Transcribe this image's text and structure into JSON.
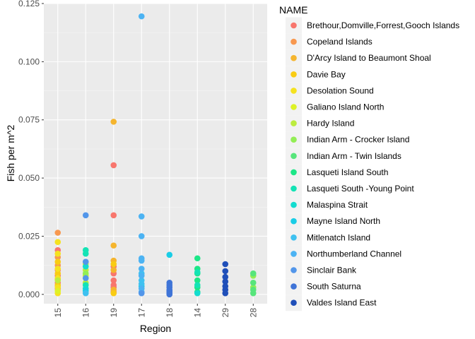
{
  "chart_data": {
    "type": "scatter",
    "title": "",
    "xlabel": "Region",
    "ylabel": "Fish per m^2",
    "ylim": [
      -0.004,
      0.125
    ],
    "categories": [
      "15",
      "16",
      "19",
      "17",
      "18",
      "14",
      "29",
      "28"
    ],
    "y_ticks": [
      "0.000",
      "0.025",
      "0.050",
      "0.075",
      "0.100",
      "0.125"
    ],
    "y_tick_values": [
      0,
      0.025,
      0.05,
      0.075,
      0.1,
      0.125
    ],
    "grid": true,
    "legend": {
      "title": "NAME",
      "placement": "right"
    },
    "series": [
      {
        "name": "Brethour,Domville,Forrest,Gooch Islands",
        "color": "#F8766D",
        "points": [
          {
            "x": "19",
            "y": 0.0555
          },
          {
            "x": "19",
            "y": 0.034
          },
          {
            "x": "19",
            "y": 0.012
          },
          {
            "x": "19",
            "y": 0.009
          },
          {
            "x": "19",
            "y": 0.006
          },
          {
            "x": "19",
            "y": 0.004
          },
          {
            "x": "19",
            "y": 0.003
          },
          {
            "x": "19",
            "y": 0.001
          },
          {
            "x": "15",
            "y": 0.019
          },
          {
            "x": "15",
            "y": 0.0105
          },
          {
            "x": "15",
            "y": 0.008
          },
          {
            "x": "15",
            "y": 0.005
          },
          {
            "x": "15",
            "y": 0.0025
          }
        ]
      },
      {
        "name": "Copeland Islands",
        "color": "#F8984F",
        "points": [
          {
            "x": "15",
            "y": 0.0265
          },
          {
            "x": "15",
            "y": 0.016
          },
          {
            "x": "15",
            "y": 0.0125
          },
          {
            "x": "15",
            "y": 0.0065
          },
          {
            "x": "15",
            "y": 0.0035
          }
        ]
      },
      {
        "name": "D'Arcy Island to Beaumont Shoal",
        "color": "#F5B52E",
        "points": [
          {
            "x": "19",
            "y": 0.0742
          },
          {
            "x": "19",
            "y": 0.021
          },
          {
            "x": "19",
            "y": 0.0145
          },
          {
            "x": "19",
            "y": 0.0105
          },
          {
            "x": "19",
            "y": 0.002
          }
        ]
      },
      {
        "name": "Davie Bay",
        "color": "#F9CC13",
        "points": [
          {
            "x": "15",
            "y": 0.014
          },
          {
            "x": "15",
            "y": 0.009
          },
          {
            "x": "15",
            "y": 0.004
          },
          {
            "x": "19",
            "y": 0.013
          },
          {
            "x": "19",
            "y": 0.0005
          }
        ]
      },
      {
        "name": "Desolation Sound",
        "color": "#F5E21F",
        "points": [
          {
            "x": "15",
            "y": 0.0225
          },
          {
            "x": "15",
            "y": 0.0175
          },
          {
            "x": "15",
            "y": 0.011
          },
          {
            "x": "15",
            "y": 0.007
          },
          {
            "x": "15",
            "y": 0.003
          },
          {
            "x": "15",
            "y": 0.0005
          }
        ]
      },
      {
        "name": "Galiano Island North",
        "color": "#DDF227",
        "points": [
          {
            "x": "16",
            "y": 0.013
          },
          {
            "x": "16",
            "y": 0.008
          },
          {
            "x": "15",
            "y": 0.0015
          }
        ]
      },
      {
        "name": "Hardy Island",
        "color": "#BCEC3E",
        "points": [
          {
            "x": "16",
            "y": 0.0105
          },
          {
            "x": "16",
            "y": 0.005
          },
          {
            "x": "15",
            "y": 0.006
          }
        ]
      },
      {
        "name": "Indian Arm - Crocker Island",
        "color": "#93EE55",
        "points": [
          {
            "x": "28",
            "y": 0.008
          },
          {
            "x": "28",
            "y": 0.003
          },
          {
            "x": "16",
            "y": 0.009
          }
        ]
      },
      {
        "name": "Indian Arm - Twin Islands",
        "color": "#57E57B",
        "points": [
          {
            "x": "28",
            "y": 0.009
          },
          {
            "x": "28",
            "y": 0.005
          },
          {
            "x": "28",
            "y": 0.002
          },
          {
            "x": "28",
            "y": 0.0005
          }
        ]
      },
      {
        "name": "Lasqueti Island South",
        "color": "#1CE787",
        "points": [
          {
            "x": "14",
            "y": 0.0155
          },
          {
            "x": "14",
            "y": 0.011
          },
          {
            "x": "14",
            "y": 0.009
          },
          {
            "x": "14",
            "y": 0.006
          },
          {
            "x": "14",
            "y": 0.003
          },
          {
            "x": "14",
            "y": 0.001
          }
        ]
      },
      {
        "name": "Lasqueti South -Young Point",
        "color": "#14E3B5",
        "points": [
          {
            "x": "16",
            "y": 0.019
          },
          {
            "x": "16",
            "y": 0.0175
          },
          {
            "x": "16",
            "y": 0.004
          },
          {
            "x": "14",
            "y": 0.0095
          },
          {
            "x": "14",
            "y": 0.004
          }
        ]
      },
      {
        "name": "Malaspina Strait",
        "color": "#13DCCF",
        "points": [
          {
            "x": "16",
            "y": 0.012
          },
          {
            "x": "16",
            "y": 0.0025
          },
          {
            "x": "14",
            "y": 0.0005
          }
        ]
      },
      {
        "name": "Mayne Island North",
        "color": "#19CDE6",
        "points": [
          {
            "x": "18",
            "y": 0.017
          },
          {
            "x": "16",
            "y": 0.0015
          },
          {
            "x": "17",
            "y": 0.0035
          }
        ]
      },
      {
        "name": "Mitlenatch Island",
        "color": "#3FC1F0",
        "points": [
          {
            "x": "17",
            "y": 0.009
          },
          {
            "x": "17",
            "y": 0.006
          },
          {
            "x": "17",
            "y": 0.0045
          },
          {
            "x": "16",
            "y": 0.0005
          }
        ]
      },
      {
        "name": "Northumberland Channel",
        "color": "#4CB3F3",
        "points": [
          {
            "x": "17",
            "y": 0.1195
          },
          {
            "x": "17",
            "y": 0.0335
          },
          {
            "x": "17",
            "y": 0.025
          },
          {
            "x": "17",
            "y": 0.0155
          },
          {
            "x": "17",
            "y": 0.0145
          },
          {
            "x": "17",
            "y": 0.011
          },
          {
            "x": "17",
            "y": 0.008
          },
          {
            "x": "17",
            "y": 0.0025
          },
          {
            "x": "17",
            "y": 0.001
          }
        ]
      },
      {
        "name": "Sinclair Bank",
        "color": "#5296EA",
        "points": [
          {
            "x": "16",
            "y": 0.034
          },
          {
            "x": "16",
            "y": 0.014
          },
          {
            "x": "16",
            "y": 0.007
          },
          {
            "x": "17",
            "y": 0.0005
          }
        ]
      },
      {
        "name": "South Saturna",
        "color": "#3F74D7",
        "points": [
          {
            "x": "18",
            "y": 0.005
          },
          {
            "x": "18",
            "y": 0.004
          },
          {
            "x": "18",
            "y": 0.003
          },
          {
            "x": "18",
            "y": 0.002
          },
          {
            "x": "18",
            "y": 0.0015
          },
          {
            "x": "18",
            "y": 0.001
          },
          {
            "x": "18",
            "y": 0.0005
          },
          {
            "x": "18",
            "y": 0.0
          }
        ]
      },
      {
        "name": "Valdes Island East",
        "color": "#1F4FB9",
        "points": [
          {
            "x": "29",
            "y": 0.013
          },
          {
            "x": "29",
            "y": 0.01
          },
          {
            "x": "29",
            "y": 0.0075
          },
          {
            "x": "29",
            "y": 0.0055
          },
          {
            "x": "29",
            "y": 0.0035
          },
          {
            "x": "29",
            "y": 0.002
          },
          {
            "x": "29",
            "y": 0.0005
          }
        ]
      }
    ]
  }
}
